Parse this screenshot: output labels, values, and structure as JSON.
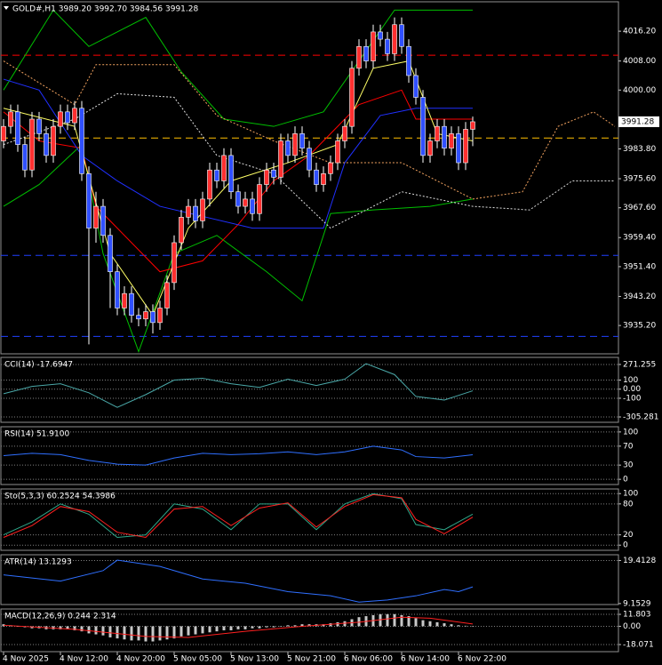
{
  "chart_data": [
    {
      "type": "candlestick",
      "title": "GOLD#,H1  3989.20 3992.70 3984.56 3991.28",
      "categories": [
        "4 Nov 2025",
        null,
        null,
        null,
        null,
        null,
        null,
        null,
        "4 Nov 12:00",
        null,
        null,
        null,
        null,
        null,
        null,
        null,
        "4 Nov 20:00",
        null,
        null,
        null,
        null,
        null,
        null,
        null,
        "5 Nov 05:00",
        null,
        null,
        null,
        null,
        null,
        null,
        null,
        "5 Nov 13:00",
        null,
        null,
        null,
        null,
        null,
        null,
        null,
        "5 Nov 21:00",
        null,
        null,
        null,
        null,
        null,
        null,
        null,
        "6 Nov 06:00",
        null,
        null,
        null,
        null,
        null,
        null,
        null,
        "6 Nov 14:00",
        null,
        null,
        null,
        null,
        null,
        null,
        null,
        "6 Nov 22:00",
        null,
        null
      ],
      "open": [
        3986,
        3990,
        3994,
        3985,
        3978,
        3992,
        3988,
        3982,
        3990,
        3994,
        3991,
        3995,
        3977,
        3962,
        3968,
        3960,
        3950,
        3940,
        3944,
        3938,
        3937,
        3939,
        3936,
        3940,
        3947,
        3958,
        3965,
        3968,
        3964,
        3970,
        3978,
        3975,
        3982,
        3972,
        3968,
        3970,
        3966,
        3974,
        3978,
        3976,
        3986,
        3982,
        3988,
        3984,
        3978,
        3974,
        3977,
        3980,
        3986,
        3990,
        4006,
        4012,
        4008,
        4016,
        4014,
        4010,
        4018,
        4012,
        4004,
        3998,
        3982,
        3986,
        3990,
        3984,
        3988,
        3980,
        3989.2
      ],
      "high": [
        3992,
        3996,
        3996,
        3987,
        3994,
        3994,
        3990,
        3992,
        3996,
        3996,
        3997,
        3997,
        3979,
        3972,
        3970,
        3962,
        3952,
        3946,
        3946,
        3940,
        3941,
        3941,
        3942,
        3949,
        3960,
        3967,
        3970,
        3970,
        3972,
        3980,
        3980,
        3984,
        3984,
        3974,
        3972,
        3972,
        3976,
        3980,
        3980,
        3988,
        3988,
        3990,
        3990,
        3986,
        3980,
        3979,
        3982,
        3988,
        3992,
        4008,
        4014,
        4014,
        4018,
        4018,
        4016,
        4020,
        4020,
        4014,
        4006,
        4000,
        3988,
        3992,
        3992,
        3990,
        3990,
        3991.2,
        3992.7
      ],
      "low": [
        3984,
        3988,
        3983,
        3976,
        3976,
        3986,
        3980,
        3980,
        3988,
        3989,
        3989,
        3975,
        3930,
        3958,
        3958,
        3940,
        3938,
        3938,
        3936,
        3935,
        3935,
        3933,
        3934,
        3938,
        3945,
        3956,
        3963,
        3962,
        3962,
        3968,
        3973,
        3973,
        3970,
        3966,
        3966,
        3964,
        3964,
        3972,
        3974,
        3974,
        3980,
        3980,
        3982,
        3976,
        3972,
        3972,
        3975,
        3978,
        3984,
        3988,
        4004,
        4006,
        4006,
        4012,
        4008,
        4008,
        4010,
        4002,
        3996,
        3980,
        3980,
        3984,
        3982,
        3982,
        3978,
        3978,
        3984.56
      ],
      "close": [
        3990,
        3994,
        3985,
        3978,
        3992,
        3988,
        3982,
        3990,
        3994,
        3991,
        3995,
        3977,
        3962,
        3968,
        3960,
        3950,
        3940,
        3944,
        3938,
        3937,
        3939,
        3936,
        3940,
        3947,
        3958,
        3965,
        3968,
        3964,
        3970,
        3978,
        3975,
        3982,
        3972,
        3968,
        3970,
        3966,
        3974,
        3978,
        3976,
        3986,
        3982,
        3988,
        3984,
        3978,
        3974,
        3977,
        3980,
        3986,
        3990,
        4006,
        4012,
        4008,
        4016,
        4014,
        4010,
        4018,
        4012,
        4004,
        3998,
        3982,
        3986,
        3990,
        3984,
        3988,
        3980,
        3989.2,
        3991.28
      ],
      "up_color": "#ff3030",
      "down_color": "#3050ff",
      "wick_color": "#ffffff",
      "ylim": [
        3927.4,
        4024.3
      ],
      "yticks": [
        {
          "value": 4016.2,
          "label": "4016.20"
        },
        {
          "value": 4008,
          "label": "4008.00"
        },
        {
          "value": 4000,
          "label": "4000.00"
        },
        {
          "value": 3983.8,
          "label": "3983.80"
        },
        {
          "value": 3975.6,
          "label": "3975.60"
        },
        {
          "value": 3967.6,
          "label": "3967.60"
        },
        {
          "value": 3959.4,
          "label": "3959.40"
        },
        {
          "value": 3951.4,
          "label": "3951.40"
        },
        {
          "value": 3943.2,
          "label": "3943.20"
        },
        {
          "value": 3935.2,
          "label": "3935.20"
        }
      ],
      "hlines": [
        {
          "value": 4009.6,
          "color": "#ff0000"
        },
        {
          "value": 3986.8,
          "color": "#ffc000"
        },
        {
          "value": 3954.5,
          "color": "#2040ff"
        },
        {
          "value": 3932.2,
          "color": "#2040ff"
        }
      ],
      "series": [
        {
          "color": "#00c000",
          "x": [
            0,
            7,
            12,
            20,
            25,
            31,
            38,
            45,
            50,
            55,
            66
          ],
          "values": [
            4000,
            4022,
            4012,
            4020,
            4005,
            3992,
            3990,
            3994,
            4008,
            4022,
            4022
          ]
        },
        {
          "color": "#00c000",
          "x": [
            0,
            5,
            11,
            14,
            19,
            24,
            30,
            37,
            42,
            46,
            52,
            60,
            66
          ],
          "values": [
            3968,
            3974,
            3985,
            3955,
            3928,
            3955,
            3960,
            3950,
            3942,
            3966,
            3967,
            3968,
            3970
          ]
        },
        {
          "color": "#ff0000",
          "x": [
            0,
            5,
            11,
            13,
            22,
            28,
            33,
            38,
            43,
            50,
            56,
            58,
            66
          ],
          "values": [
            3994,
            3986,
            3984,
            3968,
            3950,
            3953,
            3963,
            3975,
            3982,
            3996,
            4000,
            3992,
            3992
          ]
        },
        {
          "color": "#2030ff",
          "x": [
            0,
            5,
            11,
            16,
            22,
            35,
            45,
            48,
            53,
            58,
            66
          ],
          "values": [
            4003,
            4000,
            3982,
            3975,
            3968,
            3962,
            3962,
            3980,
            3993,
            3995,
            3995
          ]
        },
        {
          "color": "#ffff66",
          "x": [
            0,
            10,
            15,
            21,
            26,
            32,
            40,
            47,
            52,
            57,
            61,
            66
          ],
          "values": [
            3995,
            3990,
            3955,
            3938,
            3962,
            3975,
            3980,
            3985,
            4006,
            4008,
            3988,
            3986
          ]
        },
        {
          "color": "#f4a460",
          "style": "dotted",
          "x": [
            0,
            10,
            13,
            24,
            30,
            38,
            46,
            56,
            66,
            73,
            78,
            83,
            86
          ],
          "values": [
            4008,
            3996,
            4007,
            4007,
            3993,
            3986,
            3980,
            3980,
            3970,
            3972,
            3990,
            3994,
            3990
          ]
        },
        {
          "color": "#e0e0e0",
          "style": "dotted",
          "x": [
            0,
            10,
            16,
            24,
            30,
            38,
            46,
            56,
            66,
            74,
            80,
            86
          ],
          "values": [
            3985,
            3992,
            3999,
            3998,
            3982,
            3977,
            3962,
            3972,
            3968,
            3967,
            3975,
            3975
          ]
        }
      ]
    },
    {
      "type": "line",
      "title": "CCI(14) -17.6947",
      "ylim": [
        -364,
        349
      ],
      "yticks": [
        271.255,
        100,
        {
          "value": 0,
          "label": "0.00"
        },
        -100,
        -305.281
      ],
      "series": [
        {
          "color": "#4aa8a8",
          "x": [
            0,
            4,
            8,
            12,
            16,
            20,
            24,
            28,
            32,
            36,
            40,
            44,
            48,
            51,
            55,
            58,
            62,
            66
          ],
          "values": [
            -50,
            30,
            60,
            -40,
            -200,
            -60,
            100,
            120,
            60,
            20,
            110,
            40,
            110,
            280,
            160,
            -80,
            -120,
            -17.6947
          ]
        }
      ]
    },
    {
      "type": "line",
      "title": "RSI(14) 51.9100",
      "ylim": [
        -11,
        111
      ],
      "yticks": [
        100,
        70,
        30,
        0
      ],
      "series": [
        {
          "color": "#2f6fff",
          "x": [
            0,
            4,
            8,
            12,
            16,
            20,
            24,
            28,
            32,
            36,
            40,
            44,
            48,
            52,
            56,
            58,
            62,
            66
          ],
          "values": [
            50,
            55,
            52,
            40,
            32,
            30,
            45,
            55,
            52,
            54,
            58,
            52,
            58,
            70,
            62,
            48,
            45,
            51.91
          ]
        }
      ]
    },
    {
      "type": "line",
      "title": "Sto(5,3,3) 60.2524 54.3986",
      "ylim": [
        -10,
        109
      ],
      "yticks": [
        100,
        80,
        20,
        0
      ],
      "series": [
        {
          "color": "#2ea88a",
          "x": [
            0,
            4,
            8,
            12,
            16,
            20,
            24,
            28,
            32,
            36,
            40,
            44,
            48,
            52,
            56,
            58,
            62,
            66
          ],
          "values": [
            20,
            45,
            80,
            60,
            15,
            20,
            80,
            70,
            30,
            80,
            80,
            30,
            80,
            100,
            90,
            40,
            30,
            60.2524
          ]
        },
        {
          "color": "#ff2020",
          "x": [
            0,
            4,
            8,
            12,
            16,
            20,
            24,
            28,
            32,
            36,
            40,
            44,
            48,
            52,
            56,
            58,
            62,
            66
          ],
          "values": [
            15,
            38,
            75,
            65,
            25,
            15,
            70,
            75,
            38,
            72,
            82,
            35,
            75,
            98,
            92,
            50,
            22,
            54.3986
          ]
        }
      ]
    },
    {
      "type": "line",
      "title": "ATR(14) 13.1293",
      "ylim": [
        8.92,
        20.78
      ],
      "yticks": [
        19.4128,
        9.1529
      ],
      "series": [
        {
          "color": "#2f6fff",
          "x": [
            0,
            8,
            14,
            16,
            22,
            28,
            34,
            40,
            46,
            50,
            54,
            58,
            62,
            64,
            66
          ],
          "values": [
            16,
            14.5,
            17,
            19.5,
            18,
            15,
            14,
            12,
            11,
            9.5,
            10,
            11,
            12.5,
            12,
            13.1293
          ]
        }
      ]
    },
    {
      "type": "bar",
      "title": "MACD(12,26,9) 0.244 2.314",
      "ylim": [
        -25.1,
        17.1
      ],
      "yticks": [
        11.803,
        {
          "value": 0,
          "label": "0.00"
        },
        -18.071
      ],
      "color": "#c8c8c8",
      "values": [
        2,
        1,
        0,
        -1,
        -2,
        -2,
        -3,
        -3,
        -3,
        -3,
        -4,
        -5,
        -7,
        -8,
        -9,
        -11,
        -12,
        -13,
        -14,
        -14,
        -15,
        -15,
        -14,
        -13,
        -12,
        -10,
        -9,
        -8,
        -7,
        -6,
        -5,
        -4,
        -4,
        -3,
        -3,
        -2,
        -2,
        -1,
        -1,
        0,
        1,
        1,
        2,
        2,
        2,
        2,
        3,
        4,
        5,
        7,
        9,
        10,
        11,
        12,
        12,
        12,
        11,
        10,
        8,
        6,
        5,
        4,
        3,
        2,
        1,
        0.5,
        0.244
      ],
      "series": [
        {
          "color": "#ff2020",
          "x": [
            0,
            10,
            20,
            26,
            34,
            42,
            50,
            56,
            60,
            66
          ],
          "values": [
            1,
            -3,
            -10,
            -11,
            -5,
            0,
            4,
            9,
            8,
            2.314
          ]
        }
      ]
    }
  ]
}
